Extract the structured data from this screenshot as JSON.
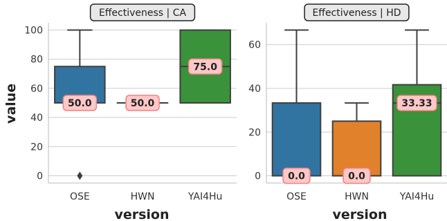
{
  "figure": {
    "ylabel": "value",
    "xlabel": "version"
  },
  "colors": {
    "OSE": "#3274a1",
    "HWN": "#e1812c",
    "YAI4Hu": "#3a923a",
    "box_edge": "#3f3f3f",
    "grid": "#cccccc",
    "label_bg": "#ffc8c8",
    "label_border": "#f08080",
    "title_bg": "#e8e8e8"
  },
  "chart_data": [
    {
      "type": "box",
      "title": "Effectiveness | CA",
      "categories": [
        "OSE",
        "HWN",
        "YAI4Hu"
      ],
      "ylim": [
        -5,
        105
      ],
      "yticks": [
        0,
        20,
        40,
        60,
        80,
        100
      ],
      "boxes": [
        {
          "category": "OSE",
          "whisker_low": 50,
          "q1": 50,
          "median": 50,
          "q3": 75,
          "whisker_high": 100,
          "outliers": [
            0
          ],
          "label": "50.0"
        },
        {
          "category": "HWN",
          "whisker_low": 50,
          "q1": 50,
          "median": 50,
          "q3": 50,
          "whisker_high": 50,
          "outliers": [],
          "label": "50.0"
        },
        {
          "category": "YAI4Hu",
          "whisker_low": 50,
          "q1": 50,
          "median": 75,
          "q3": 100,
          "whisker_high": 100,
          "outliers": [],
          "label": "75.0"
        }
      ],
      "grid": true
    },
    {
      "type": "box",
      "title": "Effectiveness | HD",
      "categories": [
        "OSE",
        "HWN",
        "YAI4Hu"
      ],
      "ylim": [
        -3.3,
        70
      ],
      "yticks": [
        0,
        20,
        40,
        60
      ],
      "boxes": [
        {
          "category": "OSE",
          "whisker_low": 0,
          "q1": 0,
          "median": 0,
          "q3": 33.33,
          "whisker_high": 66.67,
          "outliers": [],
          "label": "0.0"
        },
        {
          "category": "HWN",
          "whisker_low": 0,
          "q1": 0,
          "median": 0,
          "q3": 25,
          "whisker_high": 33.33,
          "outliers": [],
          "label": "0.0"
        },
        {
          "category": "YAI4Hu",
          "whisker_low": 0,
          "q1": 0,
          "median": 33.33,
          "q3": 41.67,
          "whisker_high": 66.67,
          "outliers": [],
          "label": "33.33"
        }
      ],
      "grid": true
    }
  ]
}
